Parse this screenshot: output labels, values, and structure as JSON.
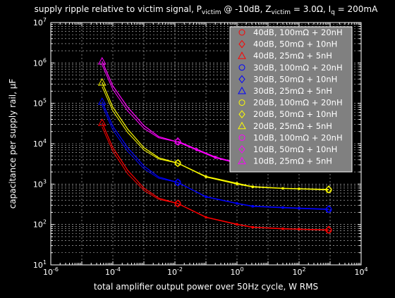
{
  "chart_data": {
    "type": "line",
    "title_parts": {
      "t1": "supply ripple relative to victim signal, P",
      "s1": "victim",
      "t2": " @ -10dB, Z",
      "s2": "victim",
      "t3": " = 3.0Ω, I",
      "s3": "q",
      "t4": " = 200mA"
    },
    "xlabel": "total amplifier output power over 50Hz cycle, W RMS",
    "ylabel": "capacitance per supply rail, µF",
    "xscale": "log",
    "yscale": "log",
    "xlim": [
      1e-06,
      10000
    ],
    "ylim": [
      10,
      10000000
    ],
    "grid": true,
    "legend_position": "top-right",
    "x_tick_exponents": [
      "-6",
      "-4",
      "-2",
      "0",
      "2",
      "4"
    ],
    "y_tick_exponents": [
      "1",
      "2",
      "3",
      "4",
      "5",
      "6",
      "7"
    ],
    "series": [
      {
        "name": "40dB, 100mΩ + 20nH",
        "color": "#ff0000",
        "marker": "circle",
        "x": [
          0.0124,
          0.1,
          1,
          3.2,
          30,
          100,
          900
        ],
        "y": [
          330,
          150,
          100,
          85,
          78,
          76,
          72
        ]
      },
      {
        "name": "40dB, 50mΩ + 10nH",
        "color": "#ff0000",
        "marker": "diamond",
        "x": [
          0.0124,
          0.1,
          1,
          3.2,
          30,
          100,
          900
        ],
        "y": [
          330,
          152,
          102,
          86,
          79,
          77,
          74
        ]
      },
      {
        "name": "40dB, 25mΩ + 5nH",
        "color": "#ff0000",
        "marker": "triangle",
        "x": [
          4.5e-05,
          0.0001,
          0.0003,
          0.001,
          0.003,
          0.0124
        ],
        "y": [
          33000,
          8000,
          2200,
          800,
          450,
          330
        ]
      },
      {
        "name": "30dB, 100mΩ + 20nH",
        "color": "#0000ff",
        "marker": "circle",
        "x": [
          0.0124,
          0.1,
          1,
          3.2,
          30,
          100,
          900
        ],
        "y": [
          1100,
          480,
          330,
          280,
          260,
          250,
          235
        ]
      },
      {
        "name": "30dB, 50mΩ + 10nH",
        "color": "#0000ff",
        "marker": "diamond",
        "x": [
          0.0124,
          0.1,
          1,
          3.2,
          30,
          100,
          900
        ],
        "y": [
          1100,
          490,
          335,
          285,
          265,
          255,
          240
        ]
      },
      {
        "name": "30dB, 25mΩ + 5nH",
        "color": "#0000ff",
        "marker": "triangle",
        "x": [
          4.5e-05,
          0.0001,
          0.0003,
          0.001,
          0.003,
          0.0124
        ],
        "y": [
          110000,
          27000,
          8000,
          2800,
          1500,
          1100
        ]
      },
      {
        "name": "20dB, 100mΩ + 20nH",
        "color": "#ffff00",
        "marker": "circle",
        "x": [
          0.0124,
          0.1,
          1,
          3.2,
          30,
          100,
          900
        ],
        "y": [
          3300,
          1500,
          1000,
          850,
          780,
          760,
          720
        ]
      },
      {
        "name": "20dB, 50mΩ + 10nH",
        "color": "#ffff00",
        "marker": "diamond",
        "x": [
          0.0124,
          0.1,
          1,
          3.2,
          30,
          100,
          900
        ],
        "y": [
          3300,
          1550,
          1050,
          870,
          790,
          770,
          740
        ]
      },
      {
        "name": "20dB, 25mΩ + 5nH",
        "color": "#ffff00",
        "marker": "triangle",
        "x": [
          4.5e-05,
          0.0001,
          0.0003,
          0.001,
          0.003,
          0.0124
        ],
        "y": [
          330000,
          80000,
          23000,
          8000,
          4500,
          3300
        ]
      },
      {
        "name": "10dB, 100mΩ + 20nH",
        "color": "#ff00ff",
        "marker": "circle",
        "x": [
          0.0124,
          0.05,
          0.2,
          1
        ],
        "y": [
          11000,
          7000,
          4500,
          3300
        ]
      },
      {
        "name": "10dB, 50mΩ + 10nH",
        "color": "#ff00ff",
        "marker": "diamond",
        "x": [
          0.0124,
          0.05,
          0.2,
          1
        ],
        "y": [
          11500,
          7300,
          4700,
          3400
        ]
      },
      {
        "name": "10dB, 25mΩ + 5nH",
        "color": "#ff00ff",
        "marker": "triangle",
        "x": [
          4.5e-05,
          0.0001,
          0.0003,
          0.001,
          0.003,
          0.0124
        ],
        "y": [
          1100000,
          270000,
          80000,
          28000,
          15000,
          11000
        ]
      }
    ],
    "extra_curves": [
      {
        "color": "#ff0000",
        "x": [
          4.5e-05,
          0.0001,
          0.0003,
          0.001,
          0.003,
          0.0124
        ],
        "y": [
          26000,
          6500,
          1800,
          700,
          420,
          330
        ]
      },
      {
        "color": "#0000ff",
        "x": [
          4.5e-05,
          0.0001,
          0.0003,
          0.001,
          0.003,
          0.0124
        ],
        "y": [
          90000,
          22000,
          6500,
          2400,
          1400,
          1100
        ]
      },
      {
        "color": "#ffff00",
        "x": [
          4.5e-05,
          0.0001,
          0.0003,
          0.001,
          0.003,
          0.0124
        ],
        "y": [
          260000,
          65000,
          19000,
          7000,
          4200,
          3300
        ]
      },
      {
        "color": "#ff00ff",
        "x": [
          4.5e-05,
          0.0001,
          0.0003,
          0.001,
          0.003,
          0.0124
        ],
        "y": [
          900000,
          220000,
          65000,
          24000,
          14000,
          11000
        ]
      }
    ],
    "colors": {
      "background": "#000000",
      "axes": "#ffffff",
      "grid": "#ffffff",
      "legend_bg": "#808080",
      "legend_edge": "#ffffff"
    }
  }
}
